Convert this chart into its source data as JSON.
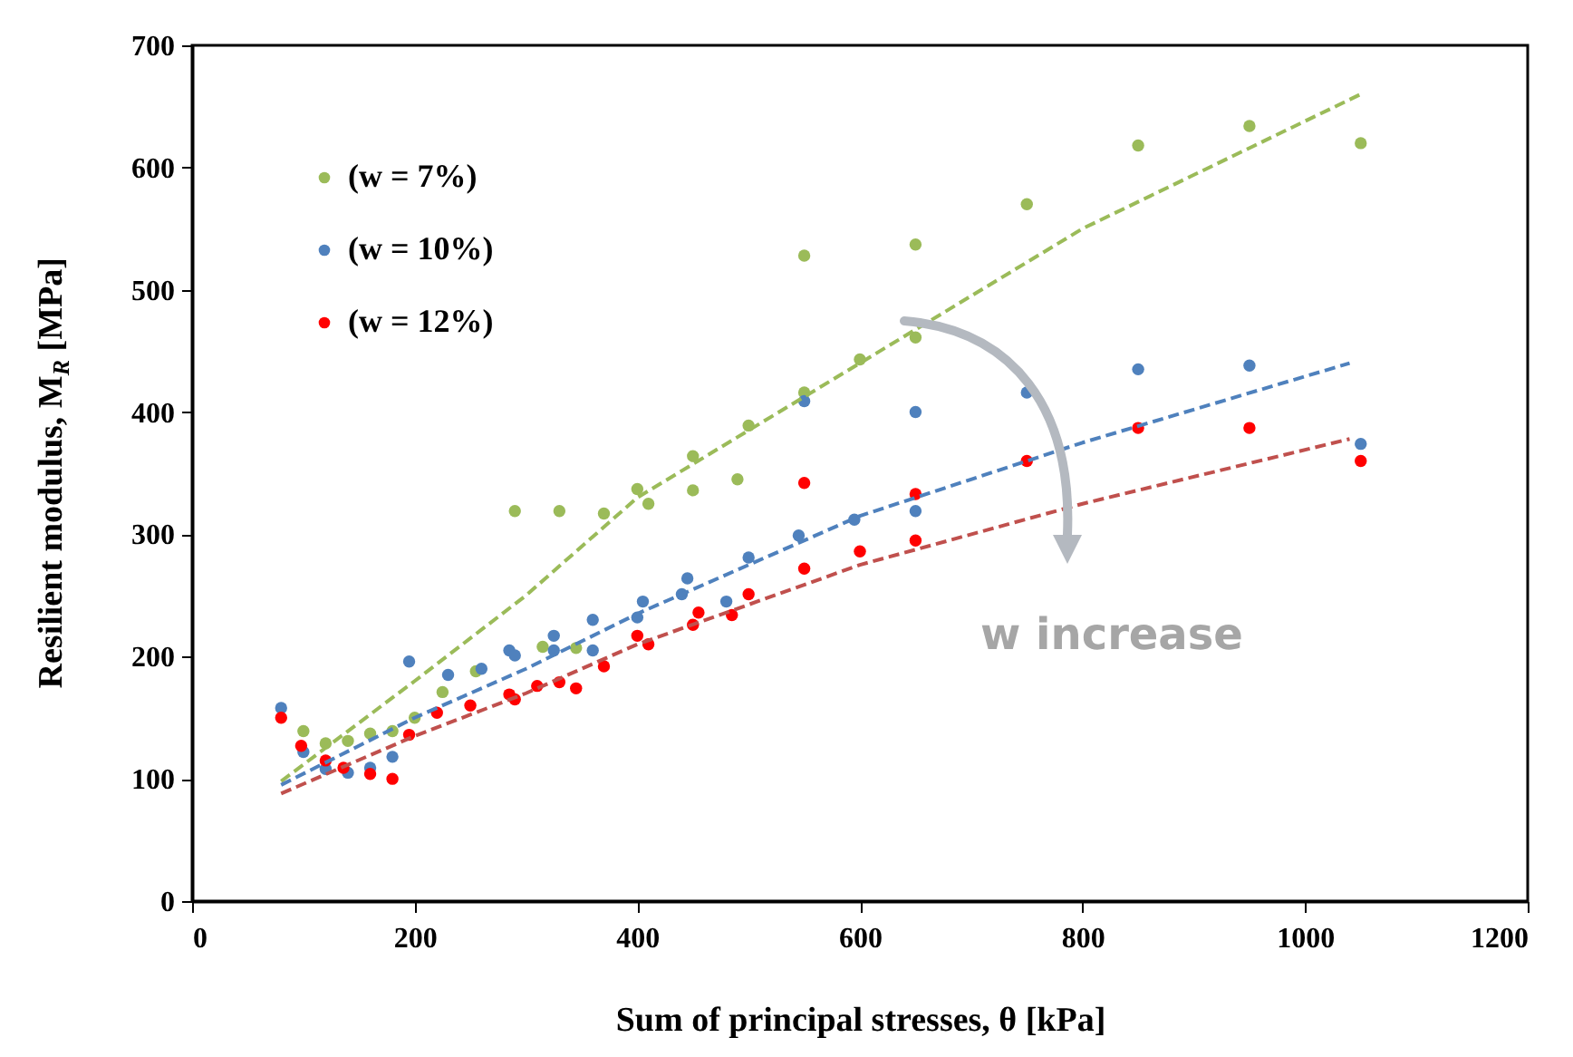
{
  "chart_data": {
    "type": "scatter",
    "xlabel": "Sum of principal stresses, θ [kPa]",
    "ylabel": "Resilient modulus, M$_{R}$ [MPa]",
    "xlim": [
      0,
      1200
    ],
    "xticks": [
      0,
      200,
      400,
      600,
      800,
      1000,
      1200
    ],
    "ylim": [
      0,
      700
    ],
    "yticks": [
      0,
      100,
      200,
      300,
      400,
      500,
      600,
      700
    ],
    "grid": false,
    "legend": "top left",
    "marker": "circle",
    "annotations": [
      "w increase"
    ],
    "series": [
      {
        "name": "(w = 7%)",
        "color": "#9bbb59",
        "x": [
          100,
          120,
          140,
          160,
          180,
          200,
          225,
          255,
          290,
          315,
          330,
          345,
          370,
          400,
          410,
          450,
          450,
          490,
          500,
          550,
          550,
          600,
          650,
          650,
          750,
          850,
          950,
          1050
        ],
        "values": [
          139,
          129,
          131,
          137,
          139,
          150,
          171,
          188,
          319,
          208,
          319,
          207,
          317,
          337,
          325,
          336,
          364,
          345,
          389,
          416,
          528,
          443,
          461,
          537,
          570,
          618,
          634,
          620
        ]
      },
      {
        "name": "(w = 10%)",
        "color": "#4f81bd",
        "x": [
          80,
          100,
          120,
          140,
          160,
          180,
          195,
          230,
          260,
          285,
          290,
          325,
          325,
          360,
          360,
          400,
          405,
          440,
          445,
          480,
          500,
          545,
          550,
          595,
          650,
          650,
          750,
          850,
          950,
          1050
        ],
        "values": [
          158,
          122,
          108,
          105,
          109,
          118,
          196,
          185,
          190,
          205,
          201,
          217,
          205,
          230,
          205,
          232,
          245,
          251,
          264,
          245,
          281,
          299,
          409,
          312,
          319,
          400,
          416,
          435,
          438,
          374
        ]
      },
      {
        "name": "(w = 12%)",
        "color": "#ff0000",
        "x": [
          80,
          98,
          120,
          136,
          160,
          180,
          195,
          220,
          250,
          285,
          290,
          310,
          330,
          345,
          370,
          400,
          410,
          450,
          455,
          485,
          500,
          550,
          550,
          600,
          650,
          650,
          750,
          850,
          950,
          1050
        ],
        "values": [
          150,
          127,
          115,
          109,
          104,
          100,
          136,
          154,
          160,
          169,
          165,
          176,
          179,
          174,
          192,
          217,
          210,
          226,
          236,
          234,
          251,
          272,
          342,
          286,
          295,
          333,
          360,
          387,
          387,
          360
        ]
      },
      {
        "type": "line",
        "line_style": "dashed",
        "marker": "none",
        "color": "#9bbb59",
        "x": [
          80,
          200,
          300,
          400,
          600,
          800,
          1050
        ],
        "values": [
          98,
          180,
          250,
          330,
          440,
          550,
          660
        ]
      },
      {
        "type": "line",
        "line_style": "dashed",
        "marker": "none",
        "color": "#4f81bd",
        "x": [
          80,
          200,
          300,
          400,
          600,
          800,
          1040
        ],
        "values": [
          95,
          150,
          190,
          235,
          315,
          375,
          440
        ]
      },
      {
        "type": "line",
        "line_style": "dashed",
        "marker": "none",
        "color": "#c0504d",
        "x": [
          80,
          200,
          300,
          400,
          600,
          800,
          1040
        ],
        "values": [
          88,
          135,
          170,
          210,
          275,
          325,
          378
        ]
      }
    ]
  }
}
